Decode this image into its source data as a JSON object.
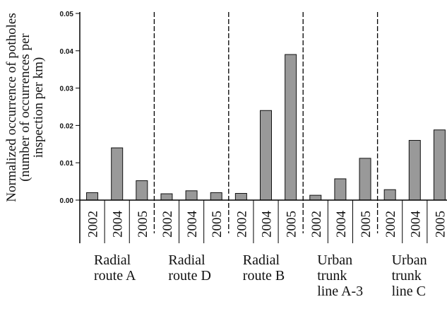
{
  "chart_data": {
    "type": "bar",
    "ylabel_lines": [
      "Normalized occurrence of potholes",
      "(number of occurrences per",
      "inspection per km)"
    ],
    "ylim": [
      0,
      0.05
    ],
    "yticks": [
      "0.00",
      "0.01",
      "0.02",
      "0.03",
      "0.04",
      "0.05"
    ],
    "grid": false,
    "groups": [
      {
        "name_lines": [
          "Radial",
          "route A"
        ],
        "categories": [
          "2002",
          "2004",
          "2005"
        ],
        "values": [
          0.002,
          0.014,
          0.0052
        ]
      },
      {
        "name_lines": [
          "Radial",
          "route D"
        ],
        "categories": [
          "2002",
          "2004",
          "2005"
        ],
        "values": [
          0.0017,
          0.0025,
          0.002
        ]
      },
      {
        "name_lines": [
          "Radial",
          "route B"
        ],
        "categories": [
          "2002",
          "2004",
          "2005"
        ],
        "values": [
          0.0018,
          0.024,
          0.039
        ]
      },
      {
        "name_lines": [
          "Urban",
          "trunk",
          "line A-3"
        ],
        "categories": [
          "2002",
          "2004",
          "2005"
        ],
        "values": [
          0.0013,
          0.0057,
          0.0112
        ]
      },
      {
        "name_lines": [
          "Urban",
          "trunk",
          "line C"
        ],
        "categories": [
          "2002",
          "2004",
          "2005"
        ],
        "values": [
          0.0028,
          0.016,
          0.0188
        ]
      }
    ],
    "bar_color": "#999999"
  }
}
